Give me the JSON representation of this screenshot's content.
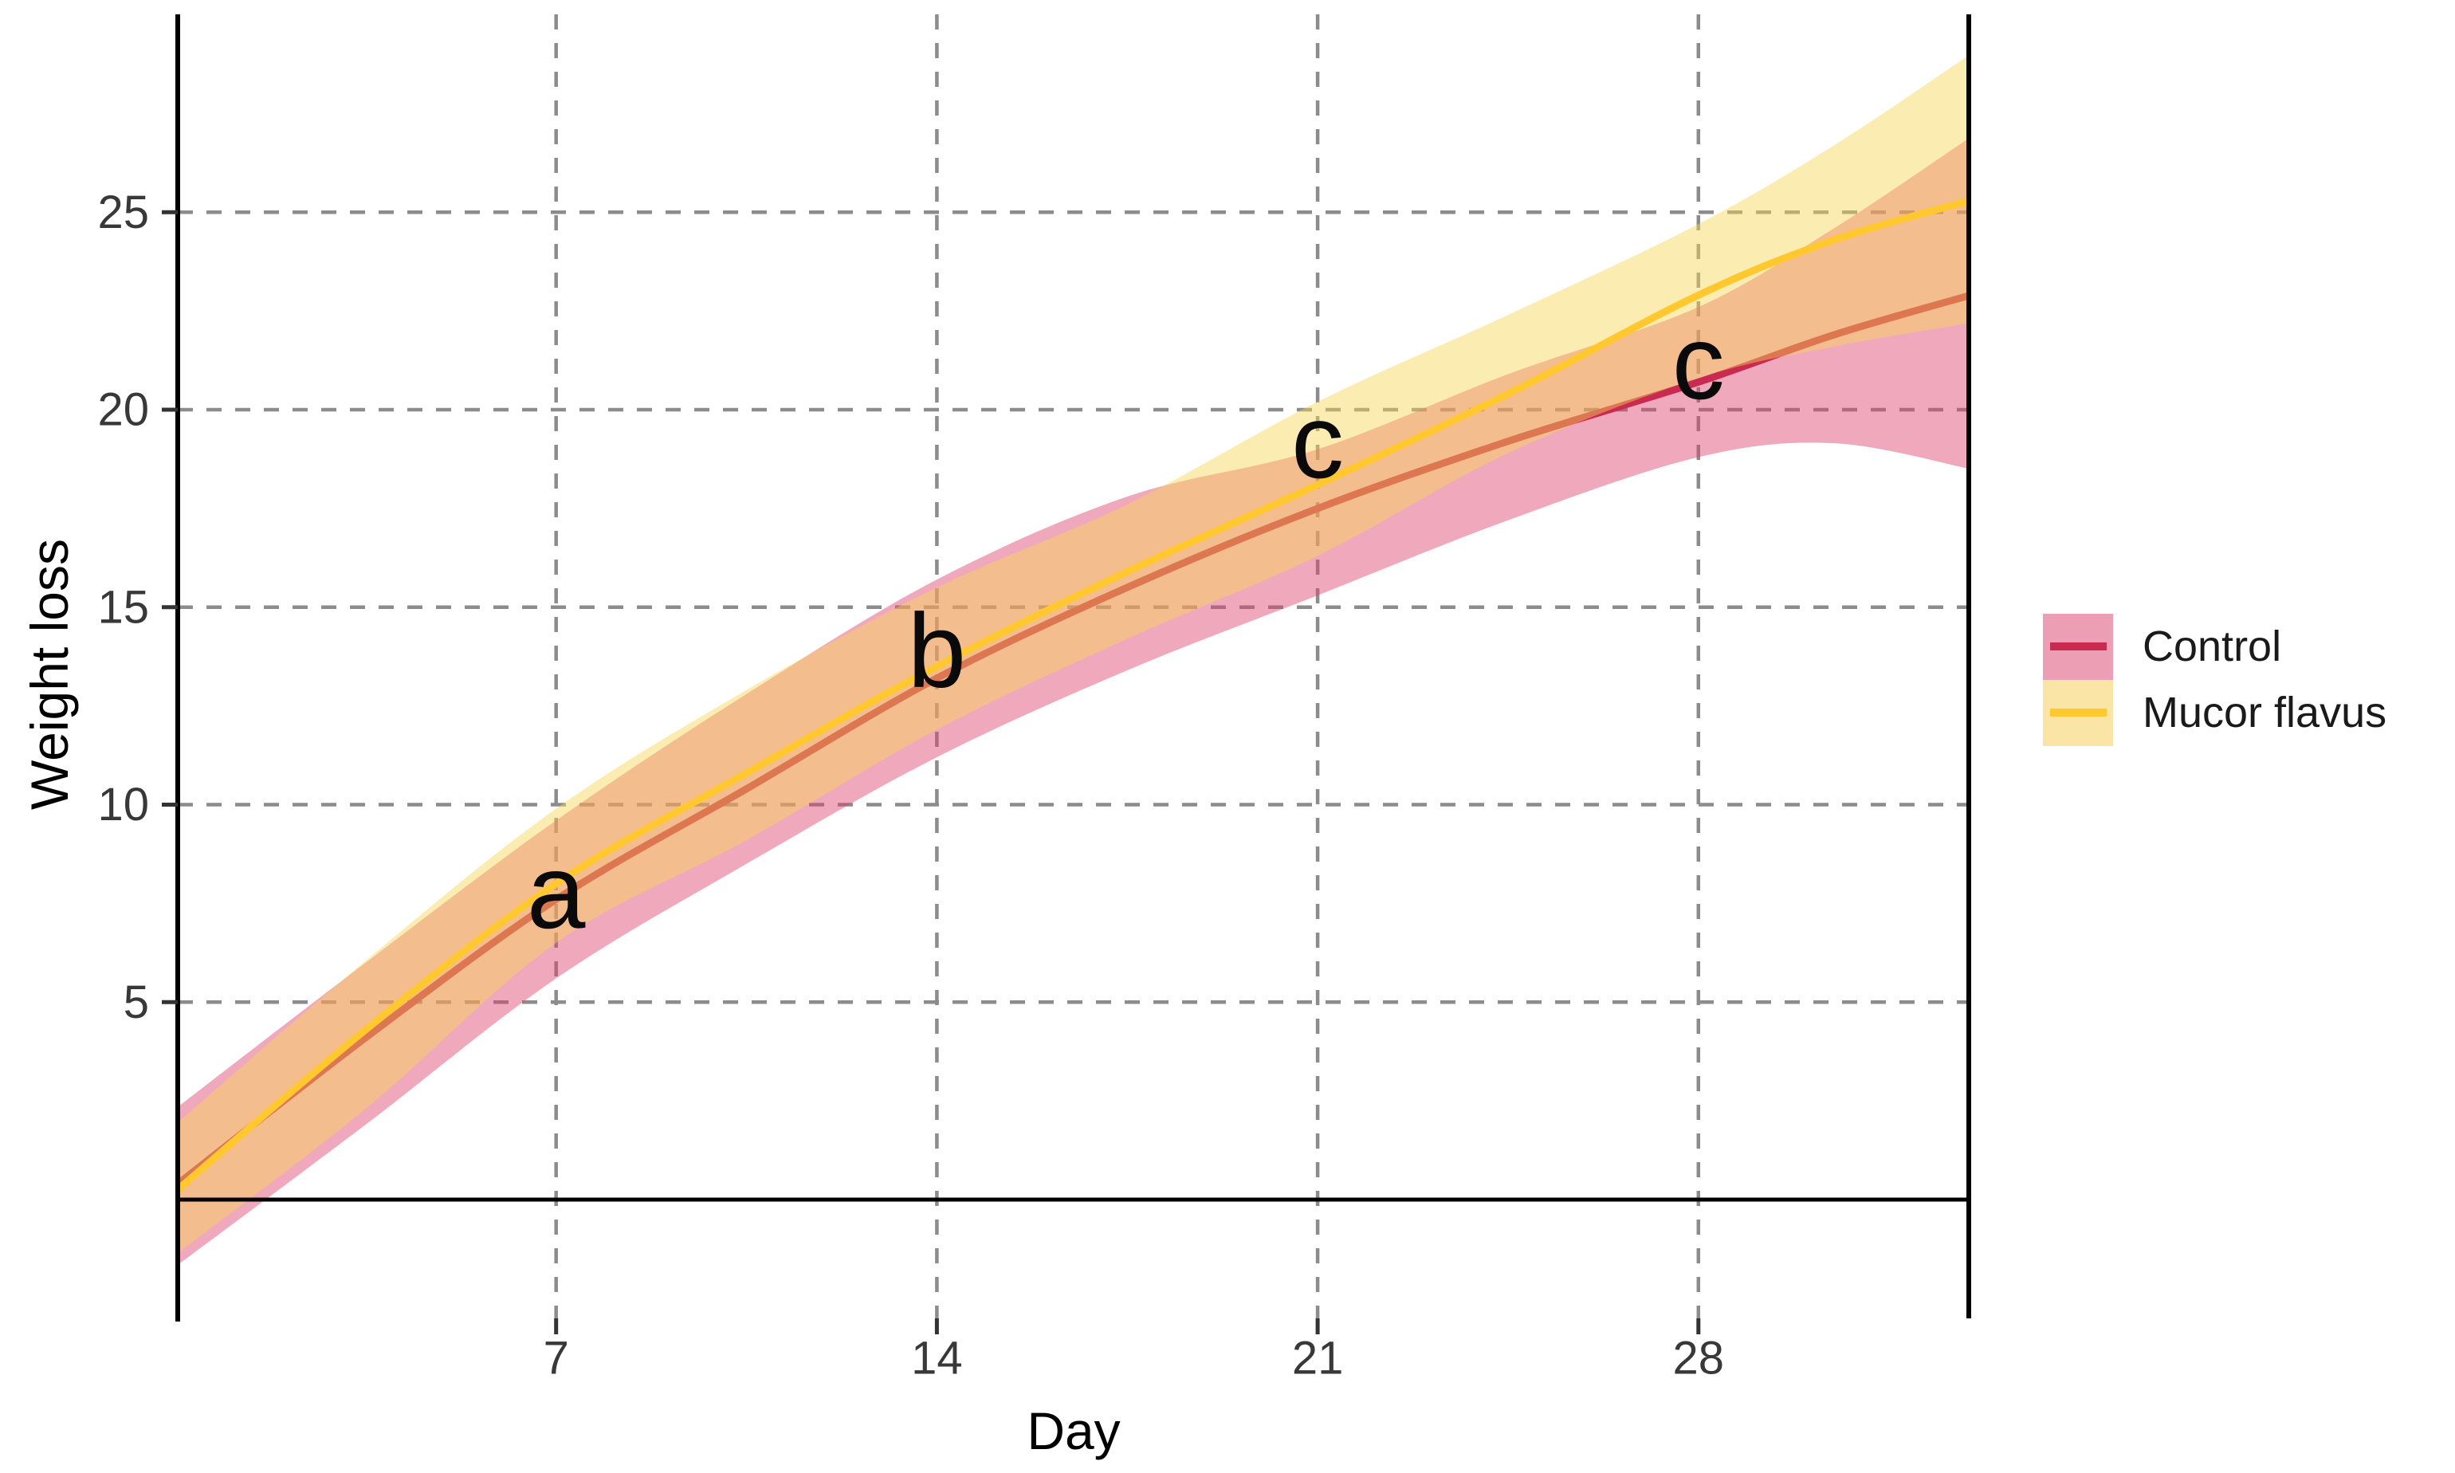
{
  "chart_data": {
    "type": "line",
    "title": "",
    "xlabel": "Day",
    "ylabel": "Weight loss",
    "x_domain": [
      0,
      33
    ],
    "y_domain": [
      -2.96,
      30
    ],
    "x_ticks": [
      7,
      14,
      21,
      28
    ],
    "y_ticks": [
      5,
      10,
      15,
      20,
      25
    ],
    "grid": "dashed-major",
    "baseline_y": 0,
    "legend_position": "right",
    "x": [
      0,
      3.5,
      7,
      10.5,
      14,
      17.5,
      21,
      24.5,
      28,
      30.5,
      33
    ],
    "series": [
      {
        "name": "Control",
        "line_color": "#C92A50",
        "ribbon_color": "rgba(222,64,106,0.45)",
        "swatch_fill": "#EC9FB4",
        "mean": [
          0.35,
          4.1,
          7.6,
          10.4,
          13.2,
          15.5,
          17.5,
          19.2,
          20.7,
          21.9,
          22.9
        ],
        "lower": [
          -1.7,
          1.9,
          5.6,
          8.5,
          11.2,
          13.4,
          15.3,
          17.2,
          18.8,
          19.15,
          18.5
        ],
        "upper": [
          2.3,
          6.0,
          9.6,
          12.8,
          15.7,
          17.8,
          19.0,
          20.9,
          22.6,
          24.6,
          26.9
        ]
      },
      {
        "name": "Mucor flavus",
        "line_color": "#FFC82E",
        "ribbon_color": "rgba(246,213,84,0.45)",
        "swatch_fill": "#FAE5A6",
        "mean": [
          0.2,
          4.3,
          8.0,
          10.8,
          13.5,
          15.9,
          18.1,
          20.4,
          22.9,
          24.3,
          25.3
        ],
        "lower": [
          -1.4,
          2.3,
          6.5,
          9.1,
          11.9,
          14.2,
          16.3,
          18.9,
          20.8,
          21.6,
          22.2
        ],
        "upper": [
          1.9,
          6.05,
          9.9,
          12.9,
          15.5,
          17.6,
          20.2,
          22.4,
          24.7,
          26.7,
          29.0
        ]
      }
    ],
    "annotations": [
      {
        "label": "a",
        "x": 7,
        "y": 7.8
      },
      {
        "label": "b",
        "x": 14,
        "y": 13.9
      },
      {
        "label": "c",
        "x": 21,
        "y": 19.2
      },
      {
        "label": "c",
        "x": 28,
        "y": 21.2
      }
    ]
  },
  "colors": {
    "gridline": "#8C8C8C",
    "axis_line": "#000000",
    "baseline": "#000000",
    "tick_mark": "#333333"
  }
}
